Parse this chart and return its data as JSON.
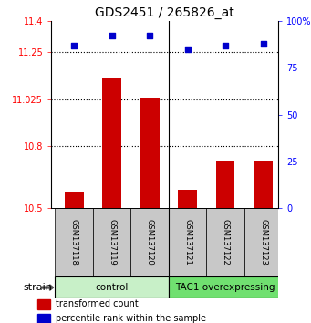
{
  "title": "GDS2451 / 265826_at",
  "samples": [
    "GSM137118",
    "GSM137119",
    "GSM137120",
    "GSM137121",
    "GSM137122",
    "GSM137123"
  ],
  "red_values": [
    10.58,
    11.13,
    11.03,
    10.59,
    10.73,
    10.73
  ],
  "blue_values": [
    87,
    92,
    92,
    85,
    87,
    88
  ],
  "ylim_left": [
    10.5,
    11.4
  ],
  "ylim_right": [
    0,
    100
  ],
  "yticks_left": [
    10.5,
    10.8,
    11.025,
    11.25,
    11.4
  ],
  "ytick_labels_left": [
    "10.5",
    "10.8",
    "11.025",
    "11.25",
    "11.4"
  ],
  "yticks_right": [
    0,
    25,
    50,
    75,
    100
  ],
  "ytick_labels_right": [
    "0",
    "25",
    "50",
    "75",
    "100%"
  ],
  "hlines": [
    11.25,
    11.025,
    10.8
  ],
  "groups": [
    {
      "label": "control",
      "indices": [
        0,
        1,
        2
      ],
      "color": "#c8f0c8"
    },
    {
      "label": "TAC1 overexpressing",
      "indices": [
        3,
        4,
        5
      ],
      "color": "#70e070"
    }
  ],
  "strain_label": "strain",
  "bar_color": "#cc0000",
  "dot_color": "#0000cc",
  "bar_width": 0.5,
  "background_color": "#ffffff",
  "sample_area_color": "#c8c8c8",
  "legend_items": [
    {
      "color": "#cc0000",
      "label": "transformed count"
    },
    {
      "color": "#0000cc",
      "label": "percentile rank within the sample"
    }
  ],
  "divider_x": 2.5,
  "xlim": [
    -0.6,
    5.4
  ]
}
